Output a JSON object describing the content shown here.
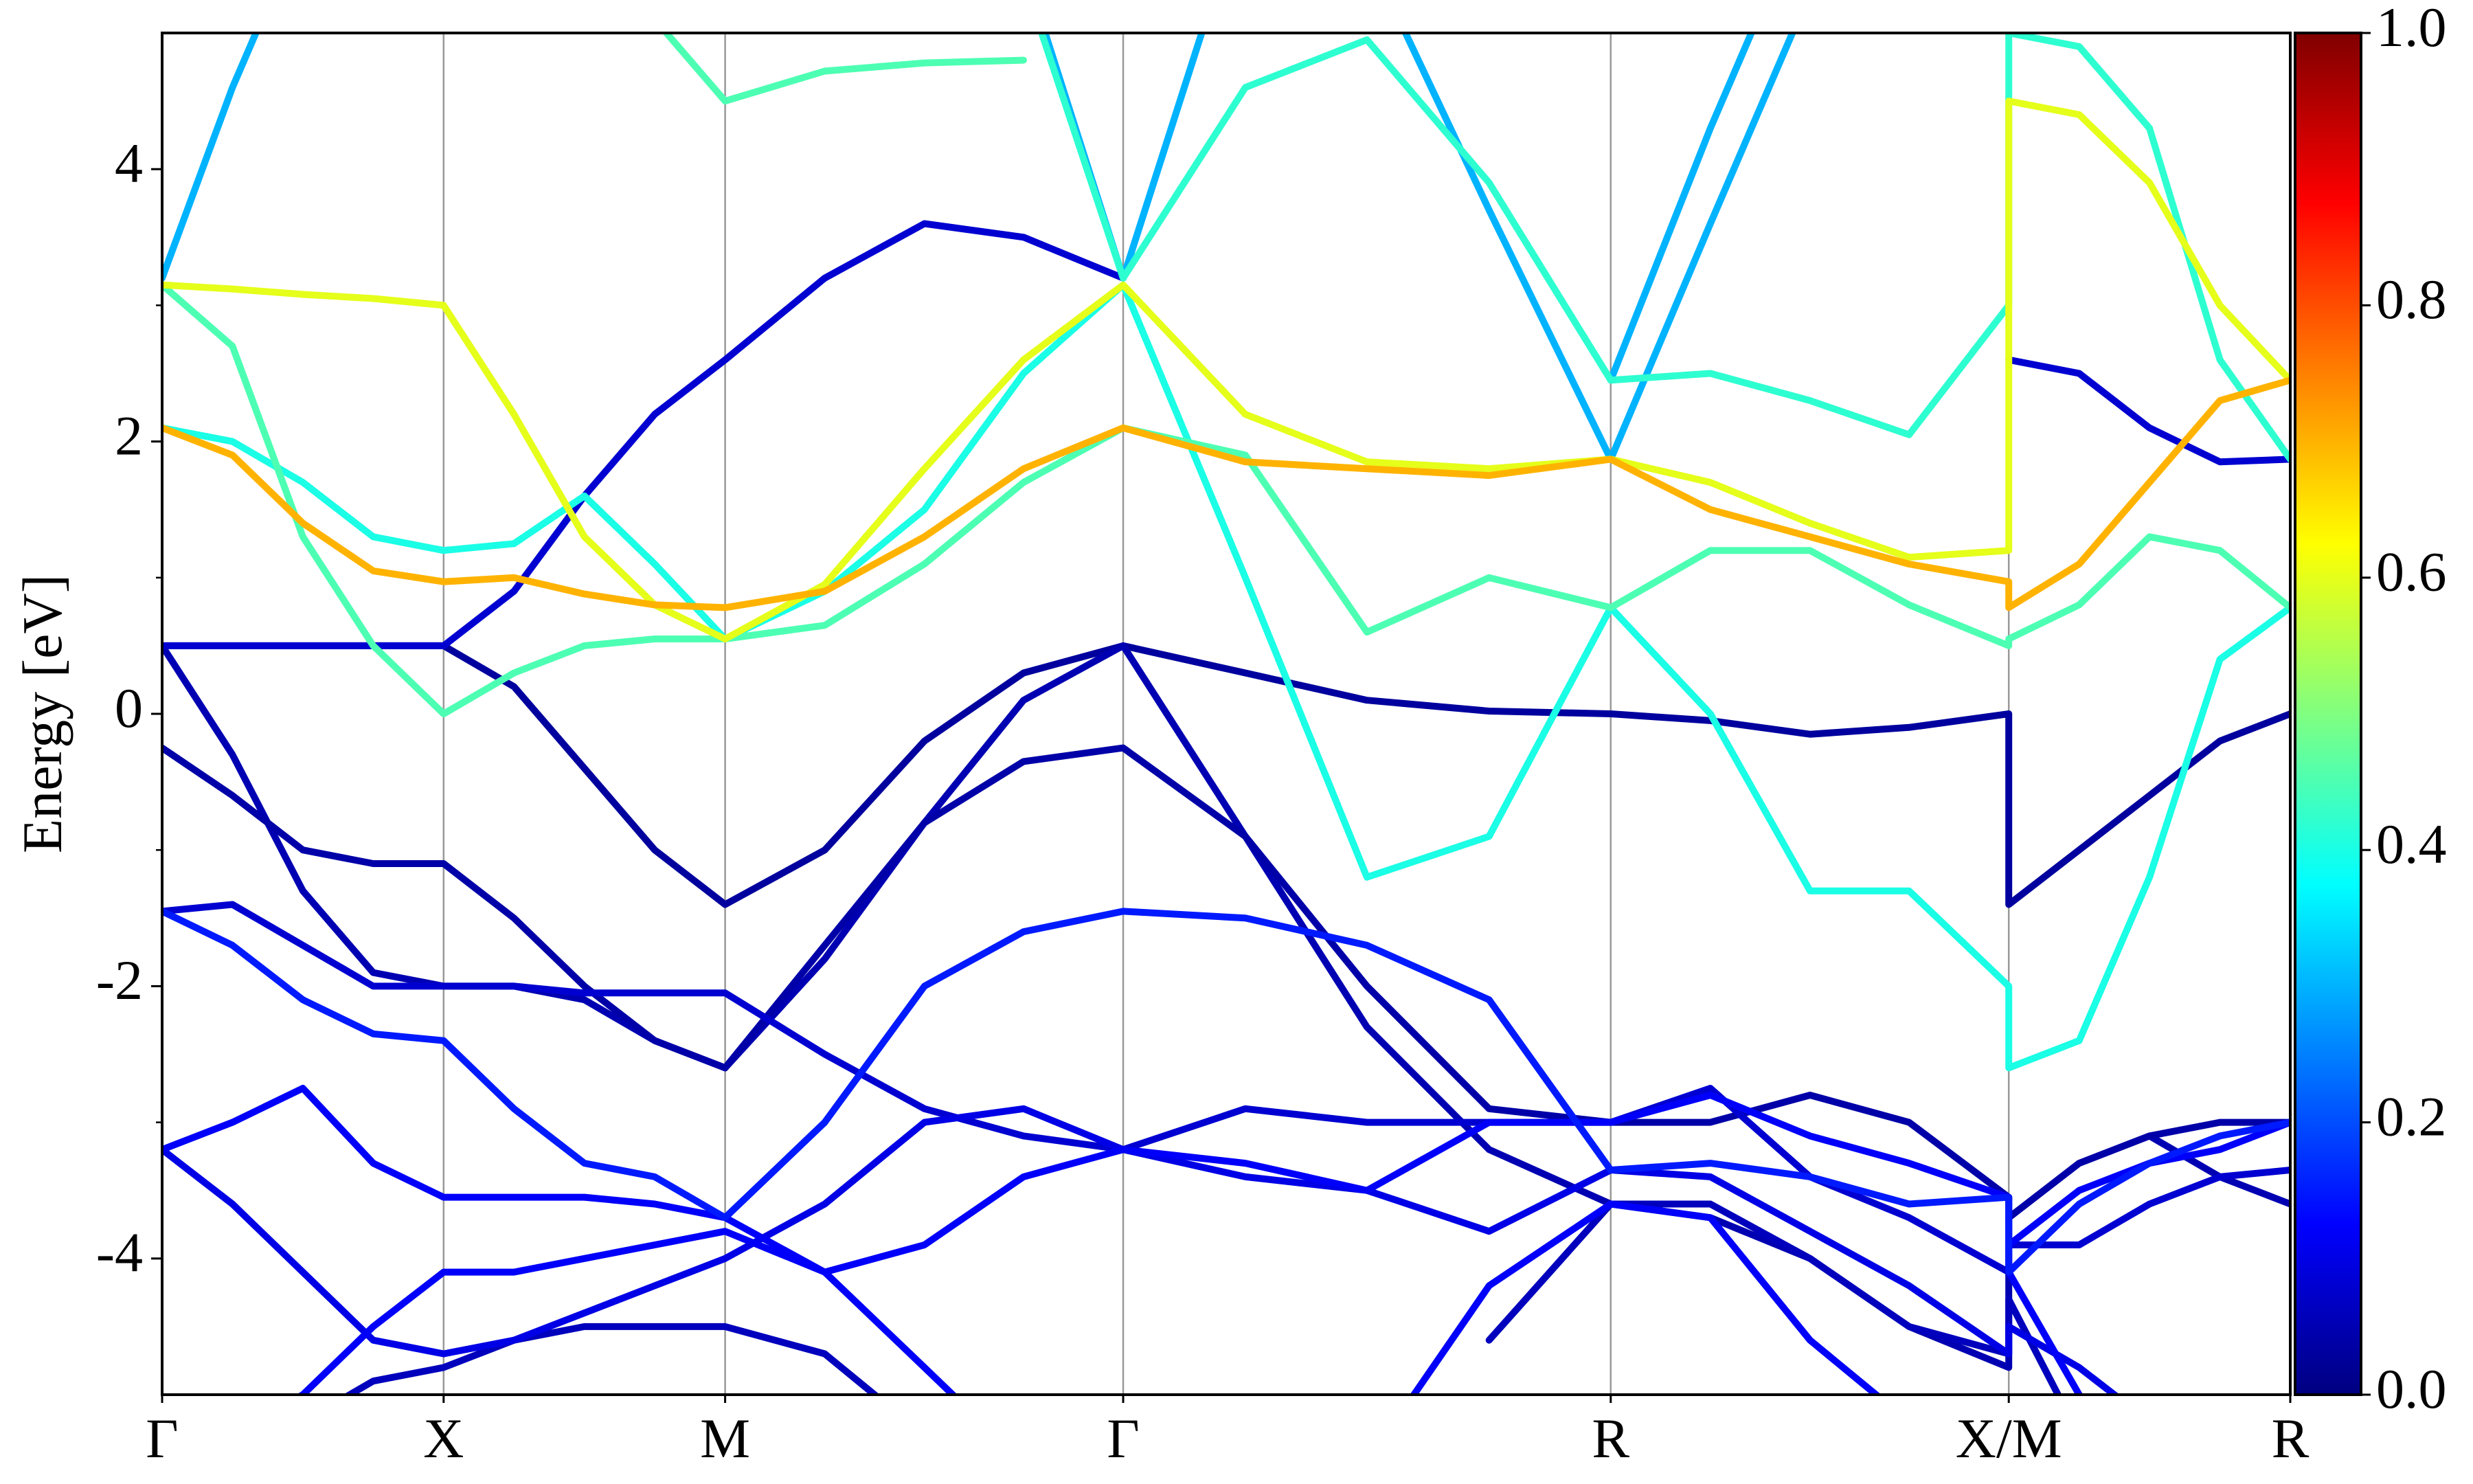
{
  "chart_data": {
    "type": "line",
    "ylabel": "Energy [eV]",
    "x": [
      0,
      0.125,
      0.25,
      0.375,
      0.5,
      0.625,
      0.75,
      0.875,
      1.0,
      1.177,
      1.354,
      1.53,
      1.707,
      1.924,
      2.14,
      2.357,
      2.573,
      2.75,
      2.927,
      3.103,
      3.28,
      3.28,
      3.405,
      3.53,
      3.655,
      3.78
    ],
    "xlim": [
      0,
      3.78
    ],
    "xticks": [
      {
        "value": 0,
        "label": "Γ"
      },
      {
        "value": 0.5,
        "label": "X"
      },
      {
        "value": 1.0,
        "label": "M"
      },
      {
        "value": 1.707,
        "label": "Γ"
      },
      {
        "value": 2.573,
        "label": "R"
      },
      {
        "value": 3.28,
        "label": "X/M"
      },
      {
        "value": 3.78,
        "label": "R"
      }
    ],
    "xgrid": true,
    "ylim": [
      -5,
      5
    ],
    "yticks": [
      -4,
      -2,
      0,
      2,
      4
    ],
    "yminorticks": [
      -3,
      -1,
      1,
      3
    ],
    "colorbar": {
      "cmap": "jet",
      "clim": [
        0,
        1
      ],
      "ticks": [
        {
          "value": 0,
          "label": "0.0"
        },
        {
          "value": 0.2,
          "label": "0.2"
        },
        {
          "value": 0.4,
          "label": "0.4"
        },
        {
          "value": 0.6,
          "label": "0.6"
        },
        {
          "value": 0.8,
          "label": "0.8"
        },
        {
          "value": 1.0,
          "label": "1.0"
        }
      ]
    },
    "series": [
      {
        "weight": 0.03,
        "values": [
          0.5,
          0.5,
          0.5,
          0.5,
          0.5,
          0.2,
          -0.4,
          -1.0,
          -1.4,
          -1.0,
          -0.2,
          0.3,
          0.5,
          0.3,
          0.1,
          0.02,
          0.0,
          -0.05,
          -0.15,
          -0.1,
          0.0,
          -1.4,
          -1.0,
          -0.6,
          -0.2,
          0.0
        ]
      },
      {
        "weight": 0.05,
        "values": [
          0.5,
          -0.3,
          -1.3,
          -1.9,
          -2.0,
          -2.0,
          -2.1,
          -2.4,
          -2.6,
          -1.8,
          -0.8,
          0.1,
          0.5,
          -0.9,
          -2.3,
          -3.2,
          -3.6,
          -3.7,
          -4.0,
          -4.5,
          -4.8,
          -3.7,
          -3.3,
          -3.1,
          -3.4,
          -3.6
        ]
      },
      {
        "weight": 0.04,
        "values": [
          -0.25,
          -0.6,
          -1.0,
          -1.1,
          -1.1,
          -1.5,
          -2.0,
          -2.4,
          -2.6,
          -1.7,
          -0.8,
          -0.35,
          -0.25,
          -0.9,
          -2.0,
          -2.9,
          -3.0,
          -3.0,
          -2.8,
          -3.0,
          -3.55,
          -3.7,
          -3.3,
          -3.1,
          -3.0,
          -3.0
        ]
      },
      {
        "weight": 0.06,
        "values": [
          null,
          null,
          -5.2,
          -4.9,
          -4.8,
          -4.6,
          -4.5,
          -4.5,
          -4.5,
          -4.7,
          -5.3,
          null,
          null,
          null,
          null,
          -4.6,
          -3.6,
          -3.6,
          -4.0,
          -4.5,
          -4.7,
          -4.3,
          -5.3,
          null,
          null,
          null
        ]
      },
      {
        "weight": 0.08,
        "values": [
          -1.45,
          -1.4,
          -1.7,
          -2.0,
          -2.0,
          -2.0,
          -2.05,
          -2.05,
          -2.05,
          -2.5,
          -2.9,
          -3.1,
          -3.2,
          -2.9,
          -3.0,
          -3.0,
          -3.0,
          -2.75,
          -3.4,
          -3.7,
          -4.1,
          -3.9,
          -3.9,
          -3.6,
          -3.4,
          -3.35
        ]
      },
      {
        "weight": 0.08,
        "values": [
          0.5,
          0.5,
          0.5,
          0.5,
          0.5,
          0.9,
          1.6,
          2.2,
          2.6,
          3.2,
          3.6,
          3.5,
          3.2,
          null,
          null,
          null,
          null,
          null,
          null,
          null,
          null,
          2.6,
          2.5,
          2.1,
          1.85,
          1.87
        ]
      },
      {
        "weight": 0.1,
        "values": [
          -3.2,
          -3.6,
          -4.1,
          -4.6,
          -4.7,
          -4.6,
          -4.4,
          -4.2,
          -4.0,
          -3.6,
          -3.0,
          -2.9,
          -3.2,
          -3.4,
          -3.5,
          -3.8,
          -3.35,
          -3.4,
          -3.8,
          -4.2,
          -4.7,
          -4.5,
          -4.8,
          -5.2,
          null,
          null
        ]
      },
      {
        "weight": 0.12,
        "values": [
          -3.2,
          -3.0,
          -2.75,
          -3.3,
          -3.55,
          -3.55,
          -3.55,
          -3.6,
          -3.7,
          -4.1,
          -3.9,
          -3.4,
          -3.2,
          -3.3,
          -3.5,
          -3.0,
          -3.0,
          -2.8,
          -3.1,
          -3.3,
          -3.55,
          -3.9,
          -3.5,
          -3.3,
          -3.2,
          -3.0
        ]
      },
      {
        "weight": 0.12,
        "values": [
          -5.5,
          -5.3,
          -5.0,
          -4.5,
          -4.1,
          -4.1,
          -4.0,
          -3.9,
          -3.8,
          -4.1,
          -4.8,
          -5.5,
          null,
          null,
          -5.5,
          -4.2,
          -3.6,
          -3.7,
          -4.6,
          -5.2,
          null,
          -4.1,
          -5.0,
          null,
          null,
          null
        ]
      },
      {
        "weight": 0.15,
        "values": [
          -1.45,
          -1.7,
          -2.1,
          -2.35,
          -2.4,
          -2.9,
          -3.3,
          -3.4,
          -3.7,
          -3.0,
          -2.0,
          -1.6,
          -1.45,
          -1.5,
          -1.7,
          -2.1,
          -3.35,
          -3.3,
          -3.4,
          -3.6,
          -3.55,
          -4.1,
          -3.6,
          -3.3,
          -3.1,
          -3.0
        ]
      },
      {
        "weight": 0.3,
        "values": [
          3.2,
          4.6,
          5.8,
          null,
          null,
          null,
          null,
          null,
          null,
          null,
          null,
          null,
          null,
          null,
          null,
          null,
          null,
          null,
          null,
          null,
          null,
          null,
          null,
          null,
          null,
          null
        ]
      },
      {
        "weight": 0.3,
        "values": [
          null,
          null,
          null,
          null,
          null,
          null,
          null,
          null,
          null,
          null,
          null,
          5.5,
          3.2,
          6.0,
          null,
          null,
          null,
          null,
          null,
          null,
          null,
          null,
          null,
          null,
          null,
          null
        ]
      },
      {
        "weight": 0.3,
        "values": [
          null,
          null,
          null,
          null,
          null,
          null,
          null,
          null,
          null,
          null,
          null,
          null,
          null,
          null,
          5.6,
          3.7,
          1.87,
          3.6,
          5.3,
          null,
          null,
          null,
          null,
          null,
          null,
          null
        ]
      },
      {
        "weight": 0.3,
        "values": [
          null,
          null,
          null,
          null,
          null,
          null,
          null,
          null,
          null,
          null,
          null,
          null,
          null,
          null,
          null,
          null,
          2.45,
          4.3,
          6.0,
          null,
          null,
          null,
          null,
          null,
          null,
          null
        ]
      },
      {
        "weight": 0.4,
        "values": [
          2.1,
          2.0,
          1.7,
          1.3,
          1.2,
          1.25,
          1.6,
          1.1,
          0.55,
          0.9,
          1.5,
          2.5,
          3.15,
          1.0,
          -1.2,
          -0.9,
          0.78,
          0.0,
          -1.3,
          -1.3,
          -2.0,
          -2.6,
          -2.4,
          -1.2,
          0.4,
          0.78
        ]
      },
      {
        "weight": 0.42,
        "values": [
          null,
          null,
          null,
          null,
          null,
          null,
          null,
          null,
          null,
          null,
          null,
          5.4,
          3.2,
          4.6,
          4.95,
          3.9,
          2.45,
          2.5,
          2.3,
          2.05,
          3.0,
          5.0,
          4.9,
          4.3,
          2.6,
          1.87
        ]
      },
      {
        "weight": 0.45,
        "values": [
          null,
          null,
          null,
          null,
          null,
          null,
          null,
          5.1,
          4.5,
          4.72,
          4.78,
          4.8,
          null,
          null,
          null,
          null,
          null,
          null,
          null,
          null,
          null,
          null,
          null,
          null,
          null,
          null
        ]
      },
      {
        "weight": 0.45,
        "values": [
          3.15,
          2.7,
          1.3,
          0.5,
          0.0,
          0.3,
          0.5,
          0.55,
          0.55,
          0.65,
          1.1,
          1.7,
          2.1,
          1.9,
          0.6,
          1.0,
          0.78,
          1.2,
          1.2,
          0.8,
          0.5,
          0.55,
          0.8,
          1.3,
          1.2,
          0.78
        ]
      },
      {
        "weight": 0.6,
        "values": [
          3.15,
          3.12,
          3.08,
          3.05,
          3.0,
          2.2,
          1.3,
          0.8,
          0.55,
          0.95,
          1.8,
          2.6,
          3.15,
          2.2,
          1.85,
          1.8,
          1.87,
          1.7,
          1.4,
          1.15,
          1.2,
          4.5,
          4.4,
          3.9,
          3.0,
          2.45
        ]
      },
      {
        "weight": 0.7,
        "values": [
          2.1,
          1.9,
          1.4,
          1.05,
          0.97,
          1.0,
          0.88,
          0.8,
          0.78,
          0.9,
          1.3,
          1.8,
          2.1,
          1.85,
          1.8,
          1.75,
          1.87,
          1.5,
          1.3,
          1.1,
          0.97,
          0.78,
          1.1,
          1.7,
          2.3,
          2.45
        ]
      }
    ]
  }
}
